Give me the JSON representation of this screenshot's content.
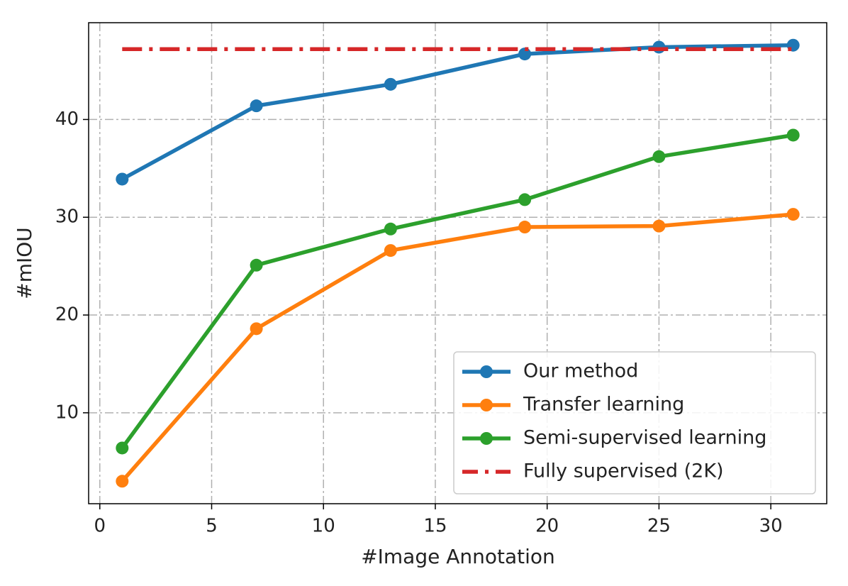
{
  "chart_data": {
    "type": "line",
    "x_label": "#Image Annotation",
    "y_label": "#mIOU",
    "xlim": [
      -0.5,
      32.5
    ],
    "ylim": [
      0.7,
      49.9
    ],
    "xticks": [
      0,
      5,
      10,
      15,
      20,
      25,
      30
    ],
    "yticks": [
      10,
      20,
      30,
      40
    ],
    "grid": true,
    "legend": "lower right",
    "series": [
      {
        "name": "Our method",
        "color": "#1f77b4",
        "linestyle": "solid",
        "marker": true,
        "x": [
          1,
          7,
          13,
          19,
          25,
          31
        ],
        "values": [
          33.9,
          41.4,
          43.6,
          46.7,
          47.4,
          47.6
        ]
      },
      {
        "name": "Transfer learning",
        "color": "#ff7f0e",
        "linestyle": "solid",
        "marker": true,
        "x": [
          1,
          7,
          13,
          19,
          25,
          31
        ],
        "values": [
          3.0,
          18.6,
          26.6,
          29.0,
          29.1,
          30.3
        ]
      },
      {
        "name": "Semi-supervised learning",
        "color": "#2ca02c",
        "linestyle": "solid",
        "marker": true,
        "x": [
          1,
          7,
          13,
          19,
          25,
          31
        ],
        "values": [
          6.4,
          25.1,
          28.8,
          31.8,
          36.2,
          38.4
        ]
      },
      {
        "name": "Fully supervised (2K)",
        "color": "#d62728",
        "linestyle": "dashdot",
        "marker": false,
        "x": [
          1,
          31
        ],
        "values": [
          47.2,
          47.2
        ]
      }
    ]
  }
}
